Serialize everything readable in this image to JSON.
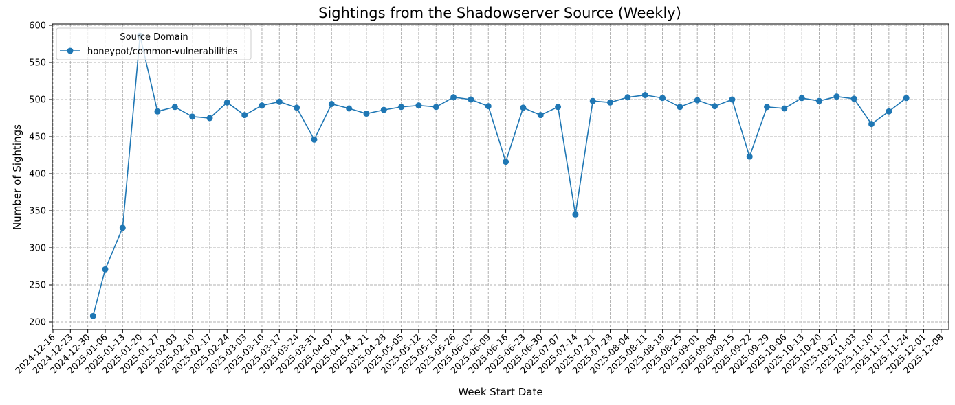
{
  "chart_data": {
    "type": "line",
    "title": "Sightings from the Shadowserver Source (Weekly)",
    "xlabel": "Week Start Date",
    "ylabel": "Number of Sightings",
    "ylim": [
      190,
      602
    ],
    "yticks": [
      200,
      250,
      300,
      350,
      400,
      450,
      500,
      550,
      600
    ],
    "grid": true,
    "legend": {
      "title": "Source Domain",
      "position": "upper left",
      "entries": [
        "honeypot/common-vulnerabilities"
      ]
    },
    "xticks": [
      "2024-12-16",
      "2024-12-23",
      "2024-12-30",
      "2025-01-06",
      "2025-01-13",
      "2025-01-20",
      "2025-01-27",
      "2025-02-03",
      "2025-02-10",
      "2025-02-17",
      "2025-02-24",
      "2025-03-03",
      "2025-03-10",
      "2025-03-17",
      "2025-03-24",
      "2025-03-31",
      "2025-04-07",
      "2025-04-14",
      "2025-04-21",
      "2025-04-28",
      "2025-05-05",
      "2025-05-12",
      "2025-05-19",
      "2025-05-26",
      "2025-06-02",
      "2025-06-09",
      "2025-06-16",
      "2025-06-23",
      "2025-06-30",
      "2025-07-07",
      "2025-07-14",
      "2025-07-21",
      "2025-07-28",
      "2025-08-04",
      "2025-08-11",
      "2025-08-18",
      "2025-08-25",
      "2025-09-01",
      "2025-09-08",
      "2025-09-15",
      "2025-09-22",
      "2025-09-29",
      "2025-10-06",
      "2025-10-13",
      "2025-10-20",
      "2025-10-27",
      "2025-11-03",
      "2025-11-10",
      "2025-11-17",
      "2025-11-24",
      "2025-12-01",
      "2025-12-08"
    ],
    "series": [
      {
        "name": "honeypot/common-vulnerabilities",
        "color": "#1f77b4",
        "x": [
          "2025-01-01",
          "2025-01-06",
          "2025-01-13",
          "2025-01-20",
          "2025-01-27",
          "2025-02-03",
          "2025-02-10",
          "2025-02-17",
          "2025-02-24",
          "2025-03-03",
          "2025-03-10",
          "2025-03-17",
          "2025-03-24",
          "2025-03-31",
          "2025-04-07",
          "2025-04-14",
          "2025-04-21",
          "2025-04-28",
          "2025-05-05",
          "2025-05-12",
          "2025-05-19",
          "2025-05-26",
          "2025-06-02",
          "2025-06-09",
          "2025-06-16",
          "2025-06-23",
          "2025-06-30",
          "2025-07-07",
          "2025-07-14",
          "2025-07-21",
          "2025-07-28",
          "2025-08-04",
          "2025-08-11",
          "2025-08-18",
          "2025-08-25",
          "2025-09-01",
          "2025-09-08",
          "2025-09-15",
          "2025-09-22",
          "2025-09-29",
          "2025-10-06",
          "2025-10-13",
          "2025-10-20",
          "2025-10-27",
          "2025-11-03",
          "2025-11-10",
          "2025-11-17",
          "2025-11-24"
        ],
        "x_offset_weeks": [
          2.3,
          3,
          4,
          5,
          6,
          7,
          8,
          9,
          10,
          11,
          12,
          13,
          14,
          15,
          16,
          17,
          18,
          19,
          20,
          21,
          22,
          23,
          24,
          25,
          26,
          27,
          28,
          29,
          30,
          31,
          32,
          33,
          34,
          35,
          36,
          37,
          38,
          39,
          40,
          41,
          42,
          43,
          44,
          45,
          46,
          47,
          48,
          49
        ],
        "values": [
          208,
          271,
          327,
          586,
          484,
          490,
          477,
          475,
          496,
          479,
          492,
          497,
          489,
          446,
          494,
          488,
          481,
          486,
          490,
          492,
          490,
          503,
          500,
          491,
          416,
          489,
          479,
          490,
          345,
          498,
          496,
          503,
          506,
          502,
          490,
          499,
          491,
          500,
          423,
          490,
          488,
          502,
          498,
          504,
          501,
          467,
          484,
          502
        ]
      }
    ]
  }
}
